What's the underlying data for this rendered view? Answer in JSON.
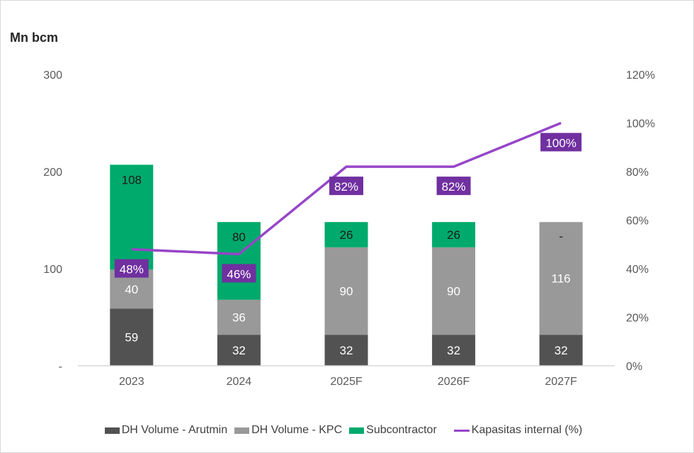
{
  "chart_data": {
    "type": "bar",
    "stacked": true,
    "title": "",
    "ylabel": "Mn bcm",
    "y2label": "",
    "xlabel": "",
    "categories": [
      "2023",
      "2024",
      "2025F",
      "2026F",
      "2027F"
    ],
    "ylim": [
      0,
      300
    ],
    "y2lim": [
      0,
      1.2
    ],
    "yticks": [
      "-",
      "100",
      "200",
      "300"
    ],
    "y2ticks": [
      "0%",
      "20%",
      "40%",
      "60%",
      "80%",
      "100%",
      "120%"
    ],
    "grid": false,
    "legend_position": "bottom",
    "series": [
      {
        "name": "DH Volume - Arutmin",
        "type": "bar",
        "color": "#525252",
        "label_color": "#ffffff",
        "values": [
          59,
          32,
          32,
          32,
          32
        ],
        "labels": [
          "59",
          "32",
          "32",
          "32",
          "32"
        ]
      },
      {
        "name": "DH Volume - KPC",
        "type": "bar",
        "color": "#999999",
        "label_color": "#ffffff",
        "values": [
          40,
          36,
          90,
          90,
          116
        ],
        "labels": [
          "40",
          "36",
          "90",
          "90",
          "116"
        ]
      },
      {
        "name": "Subcontractor",
        "type": "bar",
        "color": "#00aa6c",
        "label_color": "#1a1a1a",
        "values": [
          108,
          80,
          26,
          26,
          0
        ],
        "labels": [
          "108",
          "80",
          "26",
          "26",
          "-"
        ]
      },
      {
        "name": "Kapasitas internal (%)",
        "type": "line",
        "axis": "right",
        "color": "#9645c8",
        "label_bg": "#7030a0",
        "values": [
          0.48,
          0.46,
          0.82,
          0.82,
          1.0
        ],
        "labels": [
          "48%",
          "46%",
          "82%",
          "82%",
          "100%"
        ]
      }
    ]
  }
}
